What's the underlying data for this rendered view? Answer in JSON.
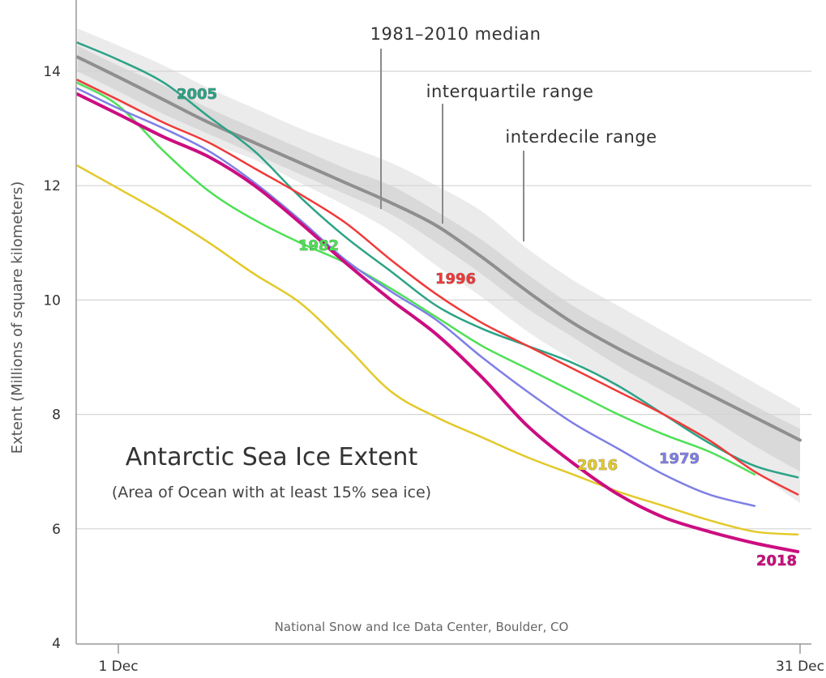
{
  "chart_data": {
    "type": "line",
    "title": "Antarctic Sea Ice Extent",
    "subtitle": "(Area of Ocean with at least 15% sea ice)",
    "ylabel": "Extent (Millions of square kilometers)",
    "xlabel": "",
    "ylim": [
      4,
      14.8
    ],
    "xlim": [
      0,
      30
    ],
    "yticks": [
      4,
      6,
      8,
      10,
      12,
      14
    ],
    "xticks": [
      {
        "x": 0,
        "label": "1 Dec"
      },
      {
        "x": 30,
        "label": "31 Dec"
      }
    ],
    "grid": true,
    "credit": "National Snow and Ice Data Center, Boulder, CO",
    "bands": {
      "interdecile": {
        "label": "interdecile range",
        "color": "#ebebeb",
        "x": [
          -1.8,
          0,
          2,
          4,
          6,
          8,
          10,
          12,
          14,
          16,
          18,
          20,
          22,
          24,
          26,
          28,
          30
        ],
        "upper": [
          14.75,
          14.45,
          14.1,
          13.7,
          13.35,
          13.0,
          12.7,
          12.4,
          12.0,
          11.55,
          10.9,
          10.35,
          9.9,
          9.45,
          9.0,
          8.55,
          8.1
        ],
        "lower": [
          13.75,
          13.45,
          13.1,
          12.75,
          12.45,
          12.05,
          11.65,
          11.2,
          10.6,
          10.05,
          9.45,
          8.95,
          8.45,
          8.0,
          7.5,
          7.0,
          6.45
        ]
      },
      "interquartile": {
        "label": "interquartile range",
        "color": "#d9d9d9",
        "x": [
          -1.8,
          0,
          2,
          4,
          6,
          8,
          10,
          12,
          14,
          16,
          18,
          20,
          22,
          24,
          26,
          28,
          30
        ],
        "upper": [
          14.45,
          14.1,
          13.75,
          13.35,
          13.0,
          12.65,
          12.3,
          12.0,
          11.55,
          11.05,
          10.45,
          9.9,
          9.45,
          9.0,
          8.6,
          8.15,
          7.75
        ],
        "lower": [
          14.0,
          13.65,
          13.25,
          12.9,
          12.55,
          12.2,
          11.85,
          11.5,
          11.0,
          10.45,
          9.85,
          9.35,
          8.85,
          8.4,
          7.95,
          7.45,
          7.0
        ]
      }
    },
    "median": {
      "label": "1981–2010 median",
      "color": "#8f8f8f",
      "x": [
        -1.8,
        0,
        2,
        4,
        6,
        8,
        10,
        12,
        14,
        16,
        18,
        20,
        22,
        24,
        26,
        28,
        30
      ],
      "y": [
        14.25,
        13.9,
        13.5,
        13.1,
        12.75,
        12.4,
        12.05,
        11.7,
        11.3,
        10.75,
        10.15,
        9.6,
        9.15,
        8.75,
        8.35,
        7.95,
        7.55
      ]
    },
    "series": [
      {
        "name": "2005",
        "color": "#2ba386",
        "width": 2.5,
        "x": [
          -1.8,
          0,
          2,
          4,
          6,
          8,
          10,
          12,
          14,
          16,
          18,
          20,
          22,
          24,
          26,
          28,
          29.9
        ],
        "y": [
          14.5,
          14.2,
          13.8,
          13.2,
          12.6,
          11.8,
          11.1,
          10.5,
          9.9,
          9.5,
          9.2,
          8.9,
          8.5,
          8.0,
          7.5,
          7.1,
          6.9
        ]
      },
      {
        "name": "1996",
        "color": "#f03a3a",
        "width": 2.5,
        "x": [
          -1.8,
          0,
          2,
          4,
          6,
          8,
          10,
          12,
          14,
          16,
          18,
          20,
          22,
          24,
          26,
          28,
          29.9
        ],
        "y": [
          13.85,
          13.5,
          13.1,
          12.75,
          12.3,
          11.85,
          11.35,
          10.7,
          10.1,
          9.6,
          9.2,
          8.8,
          8.4,
          8.0,
          7.55,
          7.0,
          6.6
        ]
      },
      {
        "name": "1982",
        "color": "#4ee056",
        "width": 2.5,
        "x": [
          -1.8,
          0,
          2,
          4,
          6,
          8,
          10,
          12,
          14,
          16,
          18,
          20,
          22,
          24,
          26,
          28
        ],
        "y": [
          13.8,
          13.4,
          12.6,
          11.9,
          11.4,
          11.0,
          10.65,
          10.2,
          9.7,
          9.2,
          8.8,
          8.4,
          8.0,
          7.65,
          7.35,
          6.95
        ]
      },
      {
        "name": "1979",
        "color": "#7f7fe6",
        "width": 2.5,
        "x": [
          -1.8,
          0,
          2,
          4,
          6,
          8,
          10,
          12,
          14,
          16,
          18,
          20,
          22,
          24,
          26,
          28
        ],
        "y": [
          13.7,
          13.35,
          13.0,
          12.6,
          12.05,
          11.4,
          10.7,
          10.15,
          9.65,
          9.0,
          8.4,
          7.85,
          7.4,
          6.95,
          6.6,
          6.4
        ]
      },
      {
        "name": "2016",
        "color": "#e3c92a",
        "width": 2.5,
        "x": [
          -1.8,
          0,
          2,
          4,
          6,
          8,
          10,
          12,
          14,
          16,
          18,
          20,
          22,
          24,
          26,
          28,
          29.9
        ],
        "y": [
          12.35,
          11.95,
          11.5,
          11.0,
          10.45,
          9.95,
          9.2,
          8.4,
          7.95,
          7.6,
          7.25,
          6.95,
          6.65,
          6.4,
          6.15,
          5.95,
          5.9
        ]
      },
      {
        "name": "2018",
        "color": "#cc0d80",
        "width": 4,
        "x": [
          -1.8,
          0,
          2,
          4,
          6,
          8,
          10,
          12,
          14,
          16,
          18,
          20,
          22,
          24,
          26,
          28,
          29.9
        ],
        "y": [
          13.6,
          13.25,
          12.85,
          12.5,
          12.0,
          11.35,
          10.65,
          10.0,
          9.4,
          8.65,
          7.8,
          7.15,
          6.6,
          6.2,
          5.95,
          5.75,
          5.6
        ]
      }
    ],
    "year_labels": [
      {
        "text": "2005",
        "color": "#2ba386"
      },
      {
        "text": "1982",
        "color": "#4ee056"
      },
      {
        "text": "1996",
        "color": "#f03a3a"
      },
      {
        "text": "2016",
        "color": "#e3c92a"
      },
      {
        "text": "1979",
        "color": "#7f7fe6"
      },
      {
        "text": "2018",
        "color": "#cc0d80"
      }
    ]
  }
}
